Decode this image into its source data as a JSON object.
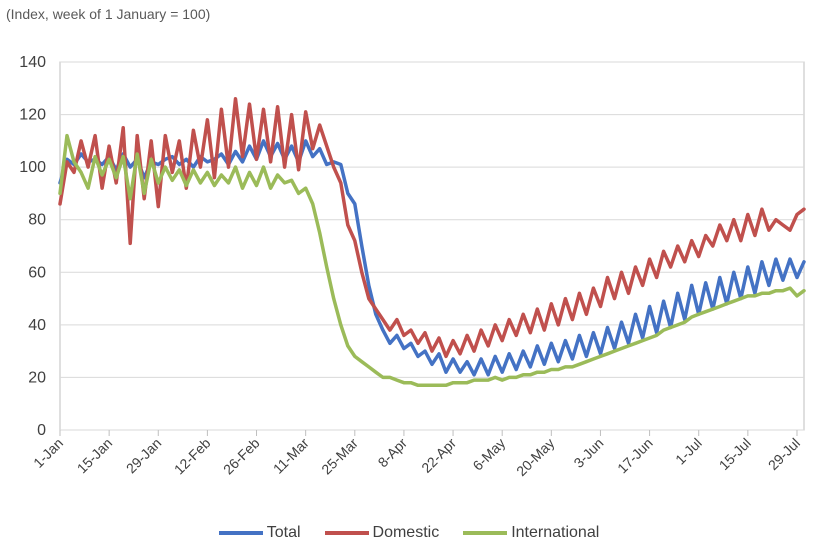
{
  "chart_data": {
    "type": "line",
    "subtitle": "(Index, week of 1 January = 100)",
    "ylim": [
      0,
      140
    ],
    "yticks": [
      0,
      20,
      40,
      60,
      80,
      100,
      120,
      140
    ],
    "grid": true,
    "legend_position": "bottom",
    "x_tick_labels": [
      "1-Jan",
      "15-Jan",
      "29-Jan",
      "12-Feb",
      "26-Feb",
      "11-Mar",
      "25-Mar",
      "8-Apr",
      "22-Apr",
      "6-May",
      "20-May",
      "3-Jun",
      "17-Jun",
      "1-Jul",
      "15-Jul",
      "29-Jul"
    ],
    "x_tick_days": [
      0,
      14,
      28,
      42,
      56,
      70,
      84,
      98,
      112,
      126,
      140,
      154,
      168,
      182,
      196,
      210
    ],
    "x_range_days": [
      0,
      212
    ],
    "series": [
      {
        "name": "Total",
        "color": "#4472C4",
        "sample_every_days": 2,
        "values": [
          94,
          103,
          101,
          105,
          102,
          103,
          101,
          104,
          99,
          105,
          100,
          103,
          96,
          102,
          101,
          103,
          104,
          101,
          103,
          100,
          104,
          102,
          103,
          105,
          101,
          106,
          102,
          108,
          103,
          110,
          104,
          109,
          103,
          108,
          102,
          110,
          104,
          107,
          101,
          102,
          101,
          90,
          86,
          70,
          55,
          44,
          38,
          33,
          36,
          31,
          33,
          28,
          30,
          25,
          29,
          22,
          27,
          22,
          26,
          21,
          27,
          21,
          28,
          22,
          29,
          23,
          30,
          24,
          32,
          25,
          33,
          26,
          34,
          27,
          36,
          28,
          37,
          29,
          39,
          31,
          41,
          33,
          44,
          35,
          47,
          37,
          49,
          39,
          52,
          42,
          55,
          44,
          56,
          46,
          58,
          48,
          60,
          50,
          62,
          52,
          64,
          55,
          65,
          57,
          65,
          58,
          64
        ]
      },
      {
        "name": "Domestic",
        "color": "#C0504D",
        "sample_every_days": 2,
        "values": [
          86,
          102,
          98,
          110,
          100,
          112,
          92,
          108,
          94,
          115,
          71,
          112,
          88,
          110,
          85,
          112,
          98,
          110,
          92,
          114,
          100,
          118,
          96,
          122,
          100,
          126,
          104,
          124,
          103,
          122,
          102,
          123,
          100,
          120,
          99,
          121,
          107,
          116,
          108,
          100,
          94,
          78,
          72,
          60,
          50,
          46,
          42,
          38,
          42,
          36,
          38,
          33,
          37,
          30,
          35,
          28,
          34,
          29,
          36,
          30,
          38,
          32,
          40,
          34,
          42,
          36,
          44,
          37,
          46,
          38,
          48,
          40,
          50,
          42,
          52,
          44,
          54,
          47,
          58,
          50,
          60,
          52,
          62,
          55,
          65,
          58,
          68,
          62,
          70,
          64,
          72,
          66,
          74,
          70,
          78,
          72,
          80,
          72,
          82,
          74,
          84,
          76,
          80,
          78,
          76,
          82,
          84
        ]
      },
      {
        "name": "International",
        "color": "#9BBB59",
        "sample_every_days": 2,
        "values": [
          90,
          112,
          102,
          98,
          92,
          104,
          97,
          103,
          96,
          104,
          88,
          105,
          90,
          103,
          94,
          100,
          95,
          99,
          93,
          99,
          94,
          98,
          93,
          97,
          94,
          100,
          92,
          98,
          93,
          100,
          92,
          97,
          94,
          95,
          90,
          92,
          86,
          75,
          62,
          50,
          40,
          32,
          28,
          26,
          24,
          22,
          20,
          20,
          19,
          18,
          18,
          17,
          17,
          17,
          17,
          17,
          18,
          18,
          18,
          19,
          19,
          19,
          20,
          19,
          20,
          20,
          21,
          21,
          22,
          22,
          23,
          23,
          24,
          24,
          25,
          26,
          27,
          28,
          29,
          30,
          31,
          32,
          33,
          34,
          35,
          36,
          38,
          39,
          40,
          41,
          43,
          44,
          45,
          46,
          47,
          48,
          49,
          50,
          51,
          51,
          52,
          52,
          53,
          53,
          54,
          51,
          53
        ]
      }
    ]
  }
}
